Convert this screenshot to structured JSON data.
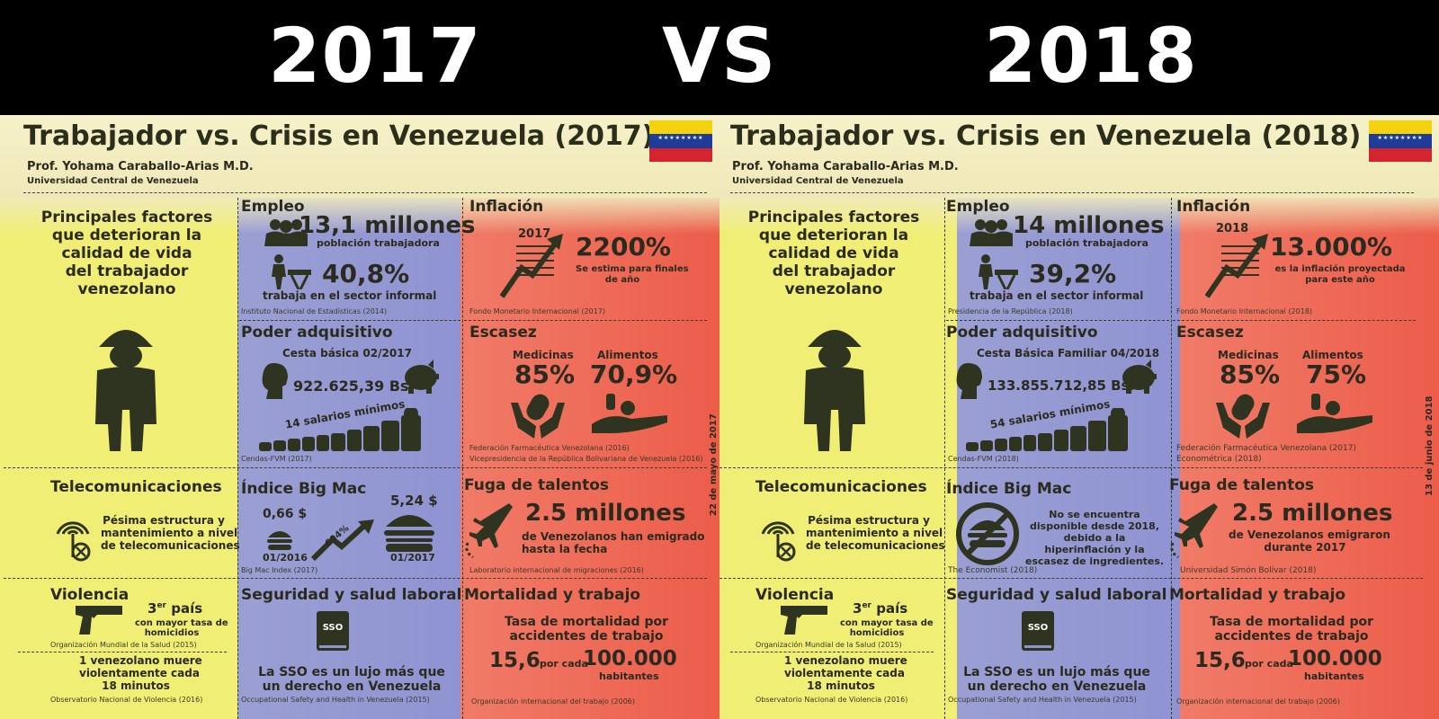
{
  "header": {
    "year_left": "2017",
    "vs": "VS",
    "year_right": "2018"
  },
  "panels": [
    {
      "title": "Trabajador vs. Crisis en Venezuela (2017)",
      "author": "Prof. Yohama Caraballo-Arias M.D.",
      "university": "Universidad Central de Venezuela",
      "factors": [
        "Principales factores",
        "que deterioran la",
        "calidad de vida",
        "del trabajador",
        "venezolano"
      ],
      "empleo": {
        "heading": "Empleo",
        "workers": "13,1 millones",
        "workers_label": "población trabajadora",
        "informal": "40,8%",
        "informal_label": "trabaja en el sector informal",
        "source": "Instituto Nacional de Estadísticas (2014)"
      },
      "inflacion": {
        "heading": "Inflación",
        "year": "2017",
        "value": "2200%",
        "label1": "Se estima para finales",
        "label2": "de año",
        "source": "Fondo Monetario Internacional (2017)"
      },
      "poder": {
        "heading": "Poder adquisitivo",
        "cesta": "Cesta básica 02/2017",
        "amount": "922.625,39 Bs.",
        "salarios": "14 salarios mínimos",
        "source": "Cendas-FVM (2017)"
      },
      "escasez": {
        "heading": "Escasez",
        "med_label": "Medicinas",
        "med_value": "85%",
        "ali_label": "Alimentos",
        "ali_value": "70,9%",
        "source1": "Federación Farmacéutica Venezolana (2016)",
        "source2": "Vicepresidencia de la República Bolivariana de Venezuela (2016)"
      },
      "telecom": {
        "heading": "Telecomunicaciones",
        "l1": "Pésima estructura y",
        "l2": "mantenimiento a nivel",
        "l3": "de telecomunicaciones"
      },
      "bigmac": {
        "heading": "Índice Big Mac",
        "price1": "0,66 $",
        "date1": "01/2016",
        "pct": "694%",
        "price2": "5,24 $",
        "date2": "01/2017",
        "source": "Big Mac Index (2017)"
      },
      "fuga": {
        "heading": "Fuga de talentos",
        "value": "2.5 millones",
        "l1": "de Venezolanos han emigrado",
        "l2": "hasta la fecha",
        "source": "Laboratorio internacional de migraciones (2016)"
      },
      "violencia": {
        "heading": "Violencia",
        "rank": "3",
        "rank_sup": "er",
        "rank_word": "país",
        "l1": "con mayor tasa de",
        "l2": "homicidios",
        "source1": "Organización Mundial de la Salud (2015)",
        "m1": "1 venezolano muere",
        "m2": "violentamente cada",
        "m3": "18 minutos",
        "source2": "Observatorio Nacional de Violencia (2016)"
      },
      "seguridad": {
        "heading": "Seguridad y salud laboral",
        "badge": "SSO",
        "l1": "La SSO es un lujo más que",
        "l2": "un derecho en Venezuela",
        "source": "Occupational Safety and Health in Venezuela (2015)"
      },
      "mortalidad": {
        "heading": "Mortalidad y trabajo",
        "l1": "Tasa de mortalidad por",
        "l2": "accidentes de trabajo",
        "rate": "15,6",
        "por": "por cada",
        "per": "100.000",
        "per_label": "habitantes",
        "source": "Organización internacional del trabajo (2006)"
      },
      "date_vertical": "22 de mayo de 2017"
    },
    {
      "title": "Trabajador vs. Crisis en Venezuela (2018)",
      "author": "Prof. Yohama Caraballo-Arias M.D.",
      "university": "Universidad Central de Venezuela",
      "factors": [
        "Principales factores",
        "que deterioran la",
        "calidad de vida",
        "del trabajador",
        "venezolano"
      ],
      "empleo": {
        "heading": "Empleo",
        "workers": "14 millones",
        "workers_label": "población trabajadora",
        "informal": "39,2%",
        "informal_label": "trabaja en el sector informal",
        "source": "Presidencia de la República (2018)"
      },
      "inflacion": {
        "heading": "Inflación",
        "year": "2018",
        "value": "13.000%",
        "label1": "es la inflación proyectada",
        "label2": "para este año",
        "source": "Fondo Monetario Internacional (2018)"
      },
      "poder": {
        "heading": "Poder adquisitivo",
        "cesta": "Cesta Básica Familiar 04/2018",
        "amount": "133.855.712,85 Bs.",
        "salarios": "54 salarios mínimos",
        "source": "Cendas-FVM (2018)"
      },
      "escasez": {
        "heading": "Escasez",
        "med_label": "Medicinas",
        "med_value": "85%",
        "ali_label": "Alimentos",
        "ali_value": "75%",
        "source1": "Federación Farmacéutica Venezolana (2017)",
        "source2": "Econométrica (2018)"
      },
      "telecom": {
        "heading": "Telecomunicaciones",
        "l1": "Pésima estructura y",
        "l2": "mantenimiento a nivel",
        "l3": "de telecomunicaciones"
      },
      "bigmac": {
        "heading": "Índice Big Mac",
        "n1": "No se encuentra",
        "n2": "disponible desde 2018,",
        "n3": "debido a la",
        "n4": "hiperinflación y la",
        "n5": "escasez de ingredientes.",
        "source": "The Economist (2018)"
      },
      "fuga": {
        "heading": "Fuga de talentos",
        "value": "2.5 millones",
        "l1": "de Venezolanos emigraron",
        "l2": "durante 2017",
        "source": "Universidad Simón Bolívar (2018)"
      },
      "violencia": {
        "heading": "Violencia",
        "rank": "3",
        "rank_sup": "er",
        "rank_word": "país",
        "l1": "con mayor tasa de",
        "l2": "homicidios",
        "source1": "Organización Mundial de la Salud (2015)",
        "m1": "1 venezolano muere",
        "m2": "violentamente cada",
        "m3": "18 minutos",
        "source2": "Observatorio Nacional de Violencia (2016)"
      },
      "seguridad": {
        "heading": "Seguridad y salud laboral",
        "badge": "SSO",
        "l1": "La SSO es un lujo más que",
        "l2": "un derecho en Venezuela",
        "source": "Occupational Safety and Health in Venezuela (2015)"
      },
      "mortalidad": {
        "heading": "Mortalidad y trabajo",
        "l1": "Tasa de mortalidad por",
        "l2": "accidentes de trabajo",
        "rate": "15,6",
        "por": "por cada",
        "per": "100.000",
        "per_label": "habitantes",
        "source": "Organización internacional del trabajo (2006)"
      },
      "date_vertical": "13 de junio de 2018"
    }
  ],
  "colors": {
    "yellow": "#f0ee74",
    "purple": "#9a9fd3",
    "red": "#ec5d4a",
    "ink": "#2b2a1f",
    "flag_yellow": "#f5d20e",
    "flag_blue": "#1f3c98",
    "flag_red": "#d3242f"
  },
  "icons": [
    "worker-sad-icon",
    "workers-group-icon",
    "street-vendor-icon",
    "rising-chart-icon",
    "face-profile-icon",
    "piggy-bank-icon",
    "coin-stack-icon",
    "pill-hands-icon",
    "food-hand-icon",
    "antenna-icon",
    "burger-icon",
    "airplane-icon",
    "gun-icon",
    "book-icon"
  ]
}
